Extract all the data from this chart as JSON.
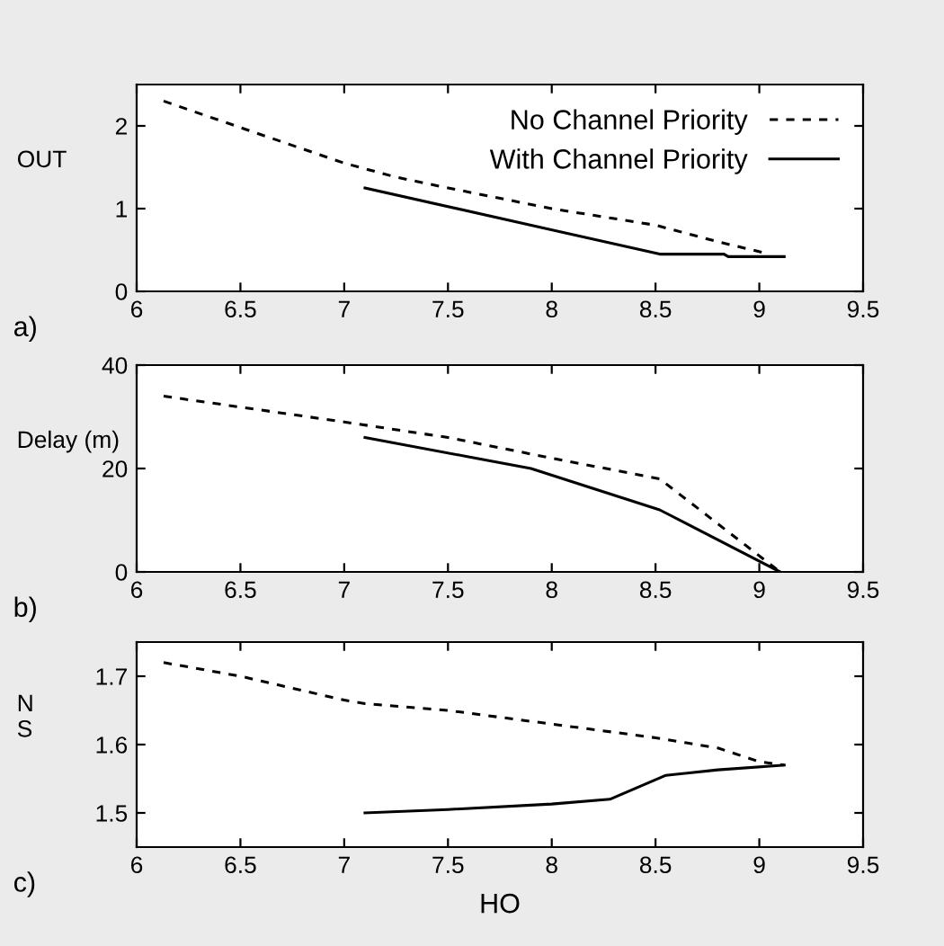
{
  "chart_data": [
    {
      "type": "line",
      "annotations": [
        "a)"
      ],
      "ylabel": "OUT",
      "xlim": [
        6,
        9.5
      ],
      "xticks": [
        6,
        6.5,
        7,
        7.5,
        8,
        8.5,
        9,
        9.5
      ],
      "ylim": [
        0,
        2.5
      ],
      "yticks": [
        0,
        1,
        2
      ],
      "legend": "top right",
      "grid": false,
      "series": [
        {
          "name": "No Channel Priority",
          "color": "#000000",
          "line_style": "dashed",
          "x": [
            6.13,
            6.5,
            7.0,
            7.25,
            7.5,
            8.0,
            8.5,
            8.8,
            9.05
          ],
          "values": [
            2.3,
            1.98,
            1.55,
            1.38,
            1.25,
            1.0,
            0.8,
            0.6,
            0.45
          ]
        },
        {
          "name": "With Channel Priority",
          "color": "#000000",
          "line_style": "solid",
          "x": [
            7.1,
            8.52,
            8.83,
            8.85,
            9.12
          ],
          "values": [
            1.25,
            0.45,
            0.45,
            0.42,
            0.42
          ]
        }
      ]
    },
    {
      "type": "line",
      "annotations": [
        "b)"
      ],
      "ylabel": "Delay (m)",
      "xlim": [
        6,
        9.5
      ],
      "xticks": [
        6,
        6.5,
        7,
        7.5,
        8,
        8.5,
        9,
        9.5
      ],
      "ylim": [
        0,
        40
      ],
      "yticks": [
        0,
        20,
        40
      ],
      "grid": false,
      "series": [
        {
          "color": "#000000",
          "line_style": "dashed",
          "x": [
            6.13,
            7.0,
            7.5,
            8.0,
            8.52,
            9.1
          ],
          "values": [
            34,
            29,
            26,
            22,
            18,
            0
          ]
        },
        {
          "color": "#000000",
          "line_style": "solid",
          "x": [
            7.1,
            7.9,
            8.52,
            9.1
          ],
          "values": [
            26,
            20,
            12,
            0
          ]
        }
      ]
    },
    {
      "type": "line",
      "annotations": [
        "c)"
      ],
      "ylabel": "N\nS",
      "xlabel": "HO",
      "xlim": [
        6,
        9.5
      ],
      "xticks": [
        6,
        6.5,
        7,
        7.5,
        8,
        8.5,
        9,
        9.5
      ],
      "ylim": [
        1.45,
        1.75
      ],
      "yticks": [
        1.5,
        1.6,
        1.7
      ],
      "grid": false,
      "series": [
        {
          "color": "#000000",
          "line_style": "dashed",
          "x": [
            6.13,
            6.5,
            7.0,
            7.1,
            7.5,
            8.0,
            8.5,
            8.8,
            9.0,
            9.12
          ],
          "values": [
            1.72,
            1.7,
            1.665,
            1.66,
            1.65,
            1.63,
            1.61,
            1.595,
            1.575,
            1.57
          ]
        },
        {
          "color": "#000000",
          "line_style": "solid",
          "x": [
            7.1,
            7.5,
            8.0,
            8.28,
            8.55,
            8.8,
            9.12
          ],
          "values": [
            1.5,
            1.505,
            1.513,
            1.52,
            1.555,
            1.563,
            1.57
          ]
        }
      ]
    }
  ]
}
